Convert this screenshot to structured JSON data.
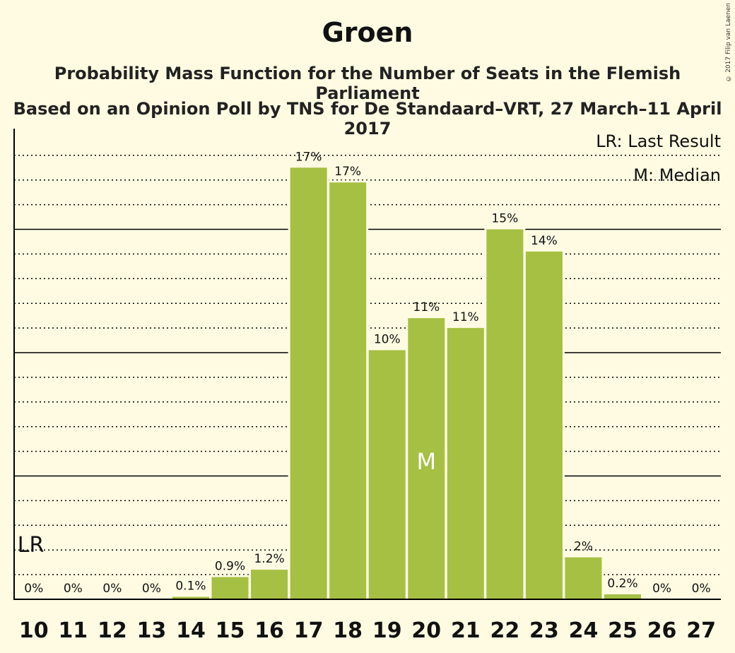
{
  "title": "Groen",
  "subtitle_line1": "Probability Mass Function for the Number of Seats in the Flemish Parliament",
  "subtitle_line2": "Based on an Opinion Poll by TNS for De Standaard–VRT, 27 March–11 April 2017",
  "copyright": "© 2017 Filip van Laenen",
  "legend": {
    "last_result": "LR: Last Result",
    "median": "M: Median"
  },
  "colors": {
    "background": "#fffbe2",
    "bar": "#a5c043",
    "text": "#222222"
  },
  "chart_data": {
    "type": "bar",
    "categories": [
      "10",
      "11",
      "12",
      "13",
      "14",
      "15",
      "16",
      "17",
      "18",
      "19",
      "20",
      "21",
      "22",
      "23",
      "24",
      "25",
      "26",
      "27"
    ],
    "values": [
      0,
      0,
      0,
      0,
      0.1,
      0.9,
      1.2,
      17.5,
      16.9,
      10.1,
      11.4,
      11.0,
      15.0,
      14.1,
      1.7,
      0.2,
      0,
      0
    ],
    "labels": [
      "0%",
      "0%",
      "0%",
      "0%",
      "0.1%",
      "0.9%",
      "1.2%",
      "17%",
      "17%",
      "10%",
      "11%",
      "11%",
      "15%",
      "14%",
      "2%",
      "0.2%",
      "0%",
      "0%"
    ],
    "ylim": [
      0,
      19
    ],
    "major_gridlines": [
      5,
      10,
      15
    ],
    "minor_gridlines": [
      1,
      2,
      3,
      4,
      6,
      7,
      8,
      9,
      11,
      12,
      13,
      14,
      16,
      17,
      18
    ],
    "last_result_category": "10",
    "last_result_marker": "LR",
    "median_category": "20",
    "median_marker": "M"
  }
}
